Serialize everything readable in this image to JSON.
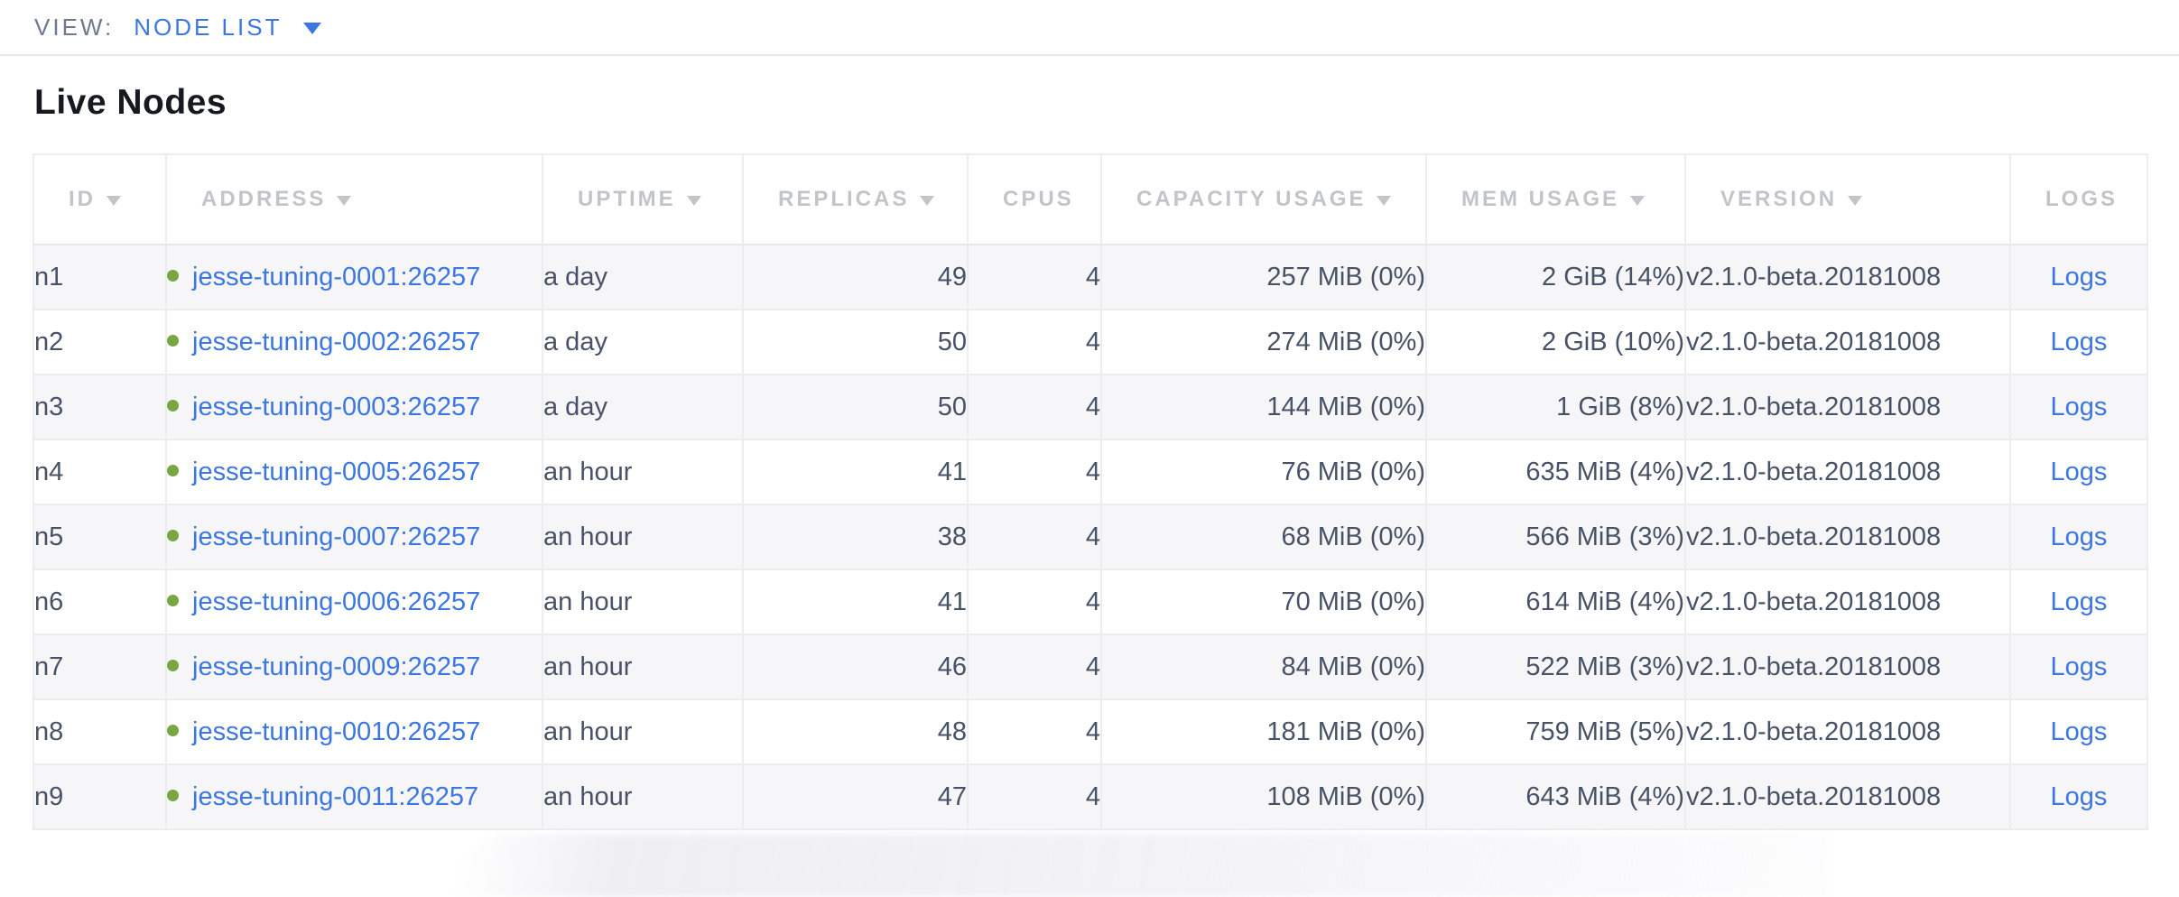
{
  "view_bar": {
    "label": "VIEW:",
    "selected_view": "NODE LIST"
  },
  "page": {
    "title": "Live Nodes"
  },
  "table": {
    "columns": [
      {
        "key": "id",
        "label": "ID",
        "sortable": true
      },
      {
        "key": "address",
        "label": "ADDRESS",
        "sortable": true
      },
      {
        "key": "uptime",
        "label": "UPTIME",
        "sortable": true
      },
      {
        "key": "replicas",
        "label": "REPLICAS",
        "sortable": true
      },
      {
        "key": "cpus",
        "label": "CPUS",
        "sortable": false
      },
      {
        "key": "capacity",
        "label": "CAPACITY USAGE",
        "sortable": true
      },
      {
        "key": "mem",
        "label": "MEM USAGE",
        "sortable": true
      },
      {
        "key": "version",
        "label": "VERSION",
        "sortable": true
      },
      {
        "key": "logs",
        "label": "LOGS",
        "sortable": false
      }
    ],
    "rows": [
      {
        "id": "n1",
        "status": "live",
        "address": "jesse-tuning-0001:26257",
        "uptime": "a day",
        "replicas": "49",
        "cpus": "4",
        "capacity_usage": "257 MiB (0%)",
        "mem_usage": "2 GiB (14%)",
        "version": "v2.1.0-beta.20181008",
        "logs_label": "Logs"
      },
      {
        "id": "n2",
        "status": "live",
        "address": "jesse-tuning-0002:26257",
        "uptime": "a day",
        "replicas": "50",
        "cpus": "4",
        "capacity_usage": "274 MiB (0%)",
        "mem_usage": "2 GiB (10%)",
        "version": "v2.1.0-beta.20181008",
        "logs_label": "Logs"
      },
      {
        "id": "n3",
        "status": "live",
        "address": "jesse-tuning-0003:26257",
        "uptime": "a day",
        "replicas": "50",
        "cpus": "4",
        "capacity_usage": "144 MiB (0%)",
        "mem_usage": "1 GiB (8%)",
        "version": "v2.1.0-beta.20181008",
        "logs_label": "Logs"
      },
      {
        "id": "n4",
        "status": "live",
        "address": "jesse-tuning-0005:26257",
        "uptime": "an hour",
        "replicas": "41",
        "cpus": "4",
        "capacity_usage": "76 MiB (0%)",
        "mem_usage": "635 MiB (4%)",
        "version": "v2.1.0-beta.20181008",
        "logs_label": "Logs"
      },
      {
        "id": "n5",
        "status": "live",
        "address": "jesse-tuning-0007:26257",
        "uptime": "an hour",
        "replicas": "38",
        "cpus": "4",
        "capacity_usage": "68 MiB (0%)",
        "mem_usage": "566 MiB (3%)",
        "version": "v2.1.0-beta.20181008",
        "logs_label": "Logs"
      },
      {
        "id": "n6",
        "status": "live",
        "address": "jesse-tuning-0006:26257",
        "uptime": "an hour",
        "replicas": "41",
        "cpus": "4",
        "capacity_usage": "70 MiB (0%)",
        "mem_usage": "614 MiB (4%)",
        "version": "v2.1.0-beta.20181008",
        "logs_label": "Logs"
      },
      {
        "id": "n7",
        "status": "live",
        "address": "jesse-tuning-0009:26257",
        "uptime": "an hour",
        "replicas": "46",
        "cpus": "4",
        "capacity_usage": "84 MiB (0%)",
        "mem_usage": "522 MiB (3%)",
        "version": "v2.1.0-beta.20181008",
        "logs_label": "Logs"
      },
      {
        "id": "n8",
        "status": "live",
        "address": "jesse-tuning-0010:26257",
        "uptime": "an hour",
        "replicas": "48",
        "cpus": "4",
        "capacity_usage": "181 MiB (0%)",
        "mem_usage": "759 MiB (5%)",
        "version": "v2.1.0-beta.20181008",
        "logs_label": "Logs"
      },
      {
        "id": "n9",
        "status": "live",
        "address": "jesse-tuning-0011:26257",
        "uptime": "an hour",
        "replicas": "47",
        "cpus": "4",
        "capacity_usage": "108 MiB (0%)",
        "mem_usage": "643 MiB (4%)",
        "version": "v2.1.0-beta.20181008",
        "logs_label": "Logs"
      }
    ]
  },
  "colors": {
    "link_blue": "#3c77e1",
    "live_status_green": "#7aa642",
    "header_text_gray": "#c2c4c9",
    "cell_text": "#475266",
    "row_stripe": "#f6f6f8"
  }
}
